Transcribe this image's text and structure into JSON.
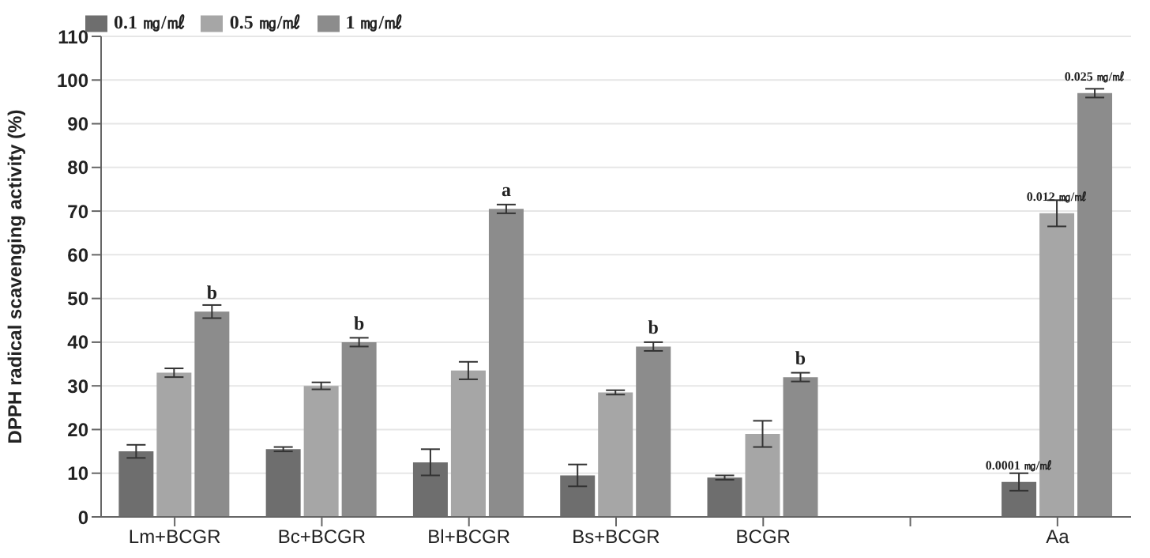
{
  "chart_data": {
    "type": "bar",
    "ylabel": "DPPH radical scavenging activity (%)",
    "categories": [
      "Lm+BCGR",
      "Bc+BCGR",
      "Bl+BCGR",
      "Bs+BCGR",
      "BCGR",
      null,
      "Aa"
    ],
    "series": [
      {
        "name": "0.1 ㎎/㎖",
        "color": "#6e6e6e",
        "values": [
          15,
          15.5,
          12.5,
          9.5,
          9,
          null,
          8
        ],
        "errors": [
          1.5,
          0.5,
          3,
          2.5,
          0.5,
          null,
          2
        ]
      },
      {
        "name": "0.5 ㎎/㎖",
        "color": "#a6a6a6",
        "values": [
          33,
          30,
          33.5,
          28.5,
          19,
          null,
          69.5
        ],
        "errors": [
          1,
          0.8,
          2,
          0.5,
          3,
          null,
          3
        ]
      },
      {
        "name": "1 ㎎/㎖",
        "color": "#8c8c8c",
        "values": [
          47,
          40,
          70.5,
          39,
          32,
          null,
          97
        ],
        "errors": [
          1.5,
          1,
          1,
          1,
          1,
          null,
          1
        ],
        "value_labels": [
          "b",
          "b",
          "a",
          "b",
          "b",
          null,
          null
        ]
      }
    ],
    "annotations": [
      "0.0001 ㎎/㎖",
      "0.012 ㎎/㎖",
      "0.025 ㎎/㎖"
    ],
    "ylim": [
      0,
      110
    ],
    "yticks": [
      0,
      10,
      20,
      30,
      40,
      50,
      60,
      70,
      80,
      90,
      100,
      110
    ],
    "grid": "y",
    "legend": "top left"
  }
}
